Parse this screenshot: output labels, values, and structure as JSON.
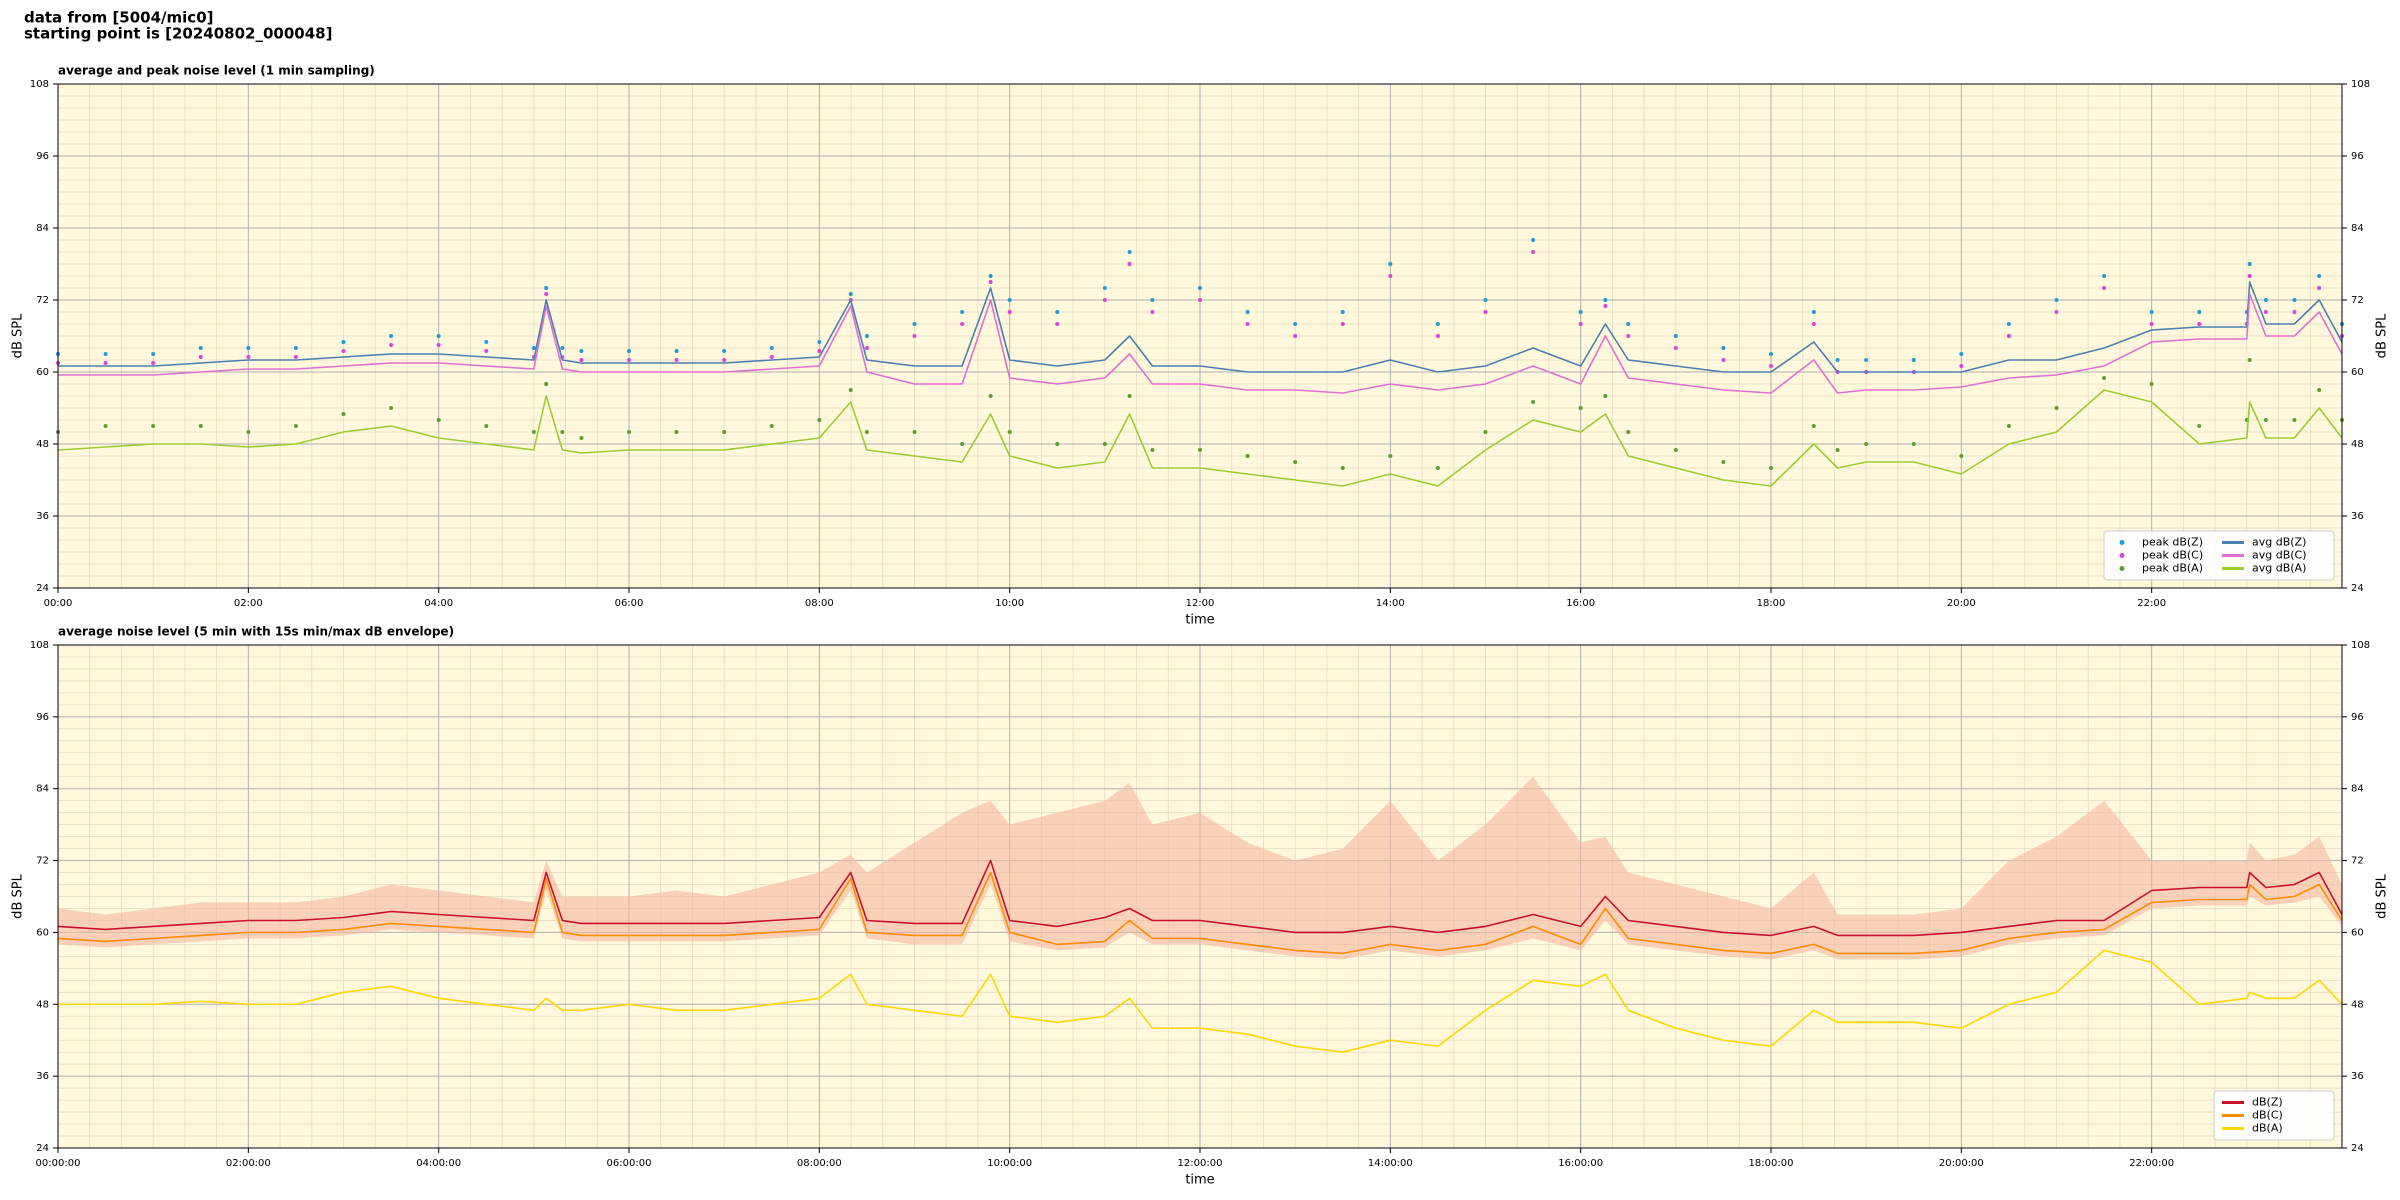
{
  "header": {
    "line1": "data from [5004/mic0]",
    "line2": "starting point is [20240802_000048]"
  },
  "chart_data": [
    {
      "type": "line",
      "title": "average and peak noise level (1 min sampling)",
      "xlabel": "time",
      "ylabel": "dB SPL",
      "xlim": [
        0,
        24
      ],
      "ylim": [
        24,
        108
      ],
      "grid": true,
      "legend": "lower right",
      "legend_columns": 2,
      "background": "#fff8dc",
      "xticks": [
        {
          "value": 0,
          "label": "00:00"
        },
        {
          "value": 2,
          "label": "02:00"
        },
        {
          "value": 4,
          "label": "04:00"
        },
        {
          "value": 6,
          "label": "06:00"
        },
        {
          "value": 8,
          "label": "08:00"
        },
        {
          "value": 10,
          "label": "10:00"
        },
        {
          "value": 12,
          "label": "12:00"
        },
        {
          "value": 14,
          "label": "14:00"
        },
        {
          "value": 16,
          "label": "16:00"
        },
        {
          "value": 18,
          "label": "18:00"
        },
        {
          "value": 20,
          "label": "20:00"
        },
        {
          "value": 22,
          "label": "22:00"
        }
      ],
      "yticks": [
        24,
        36,
        48,
        60,
        72,
        84,
        96,
        108
      ],
      "x": [
        0,
        0.5,
        1,
        1.5,
        2,
        2.5,
        3,
        3.5,
        4,
        4.5,
        5,
        5.13,
        5.3,
        5.5,
        6,
        6.5,
        7,
        7.5,
        8,
        8.33,
        8.5,
        9,
        9.5,
        9.8,
        10,
        10.5,
        11,
        11.26,
        11.5,
        12,
        12.5,
        13,
        13.5,
        14,
        14.5,
        15,
        15.5,
        16,
        16.26,
        16.5,
        17,
        17.5,
        18,
        18.45,
        18.7,
        19,
        19.5,
        20,
        20.5,
        21,
        21.5,
        22,
        22.5,
        23,
        23.03,
        23.2,
        23.5,
        23.76,
        24
      ],
      "series": [
        {
          "name": "peak dB(Z)",
          "style": "markers",
          "color": "#1f9bd7",
          "values": [
            63,
            63,
            63,
            64,
            64,
            64,
            65,
            66,
            66,
            65,
            64,
            74,
            64,
            63.5,
            63.5,
            63.5,
            63.5,
            64,
            65,
            73,
            66,
            68,
            70,
            76,
            72,
            70,
            74,
            80,
            72,
            74,
            70,
            68,
            70,
            78,
            68,
            72,
            82,
            70,
            72,
            68,
            66,
            64,
            63,
            70,
            62,
            62,
            62,
            63,
            68,
            72,
            76,
            70,
            70,
            70,
            78,
            72,
            72,
            76,
            68
          ]
        },
        {
          "name": "peak dB(C)",
          "style": "markers",
          "color": "#e040e0",
          "values": [
            61.5,
            61.5,
            61.5,
            62.5,
            62.5,
            62.5,
            63.5,
            64.5,
            64.5,
            63.5,
            62.5,
            73,
            62.5,
            62,
            62,
            62,
            62,
            62.5,
            63.5,
            72,
            64,
            66,
            68,
            75,
            70,
            68,
            72,
            78,
            70,
            72,
            68,
            66,
            68,
            76,
            66,
            70,
            80,
            68,
            71,
            66,
            64,
            62,
            61,
            68,
            60,
            60,
            60,
            61,
            66,
            70,
            74,
            68,
            68,
            68,
            76,
            70,
            70,
            74,
            66
          ]
        },
        {
          "name": "peak dB(A)",
          "style": "markers",
          "color": "#5a9e3a",
          "values": [
            50,
            51,
            51,
            51,
            50,
            51,
            53,
            54,
            52,
            51,
            50,
            58,
            50,
            49,
            50,
            50,
            50,
            51,
            52,
            57,
            50,
            50,
            48,
            56,
            50,
            48,
            48,
            56,
            47,
            47,
            46,
            45,
            44,
            46,
            44,
            50,
            55,
            54,
            56,
            50,
            47,
            45,
            44,
            51,
            47,
            48,
            48,
            46,
            51,
            54,
            59,
            58,
            51,
            52,
            62,
            52,
            52,
            57,
            52
          ]
        },
        {
          "name": "avg dB(Z)",
          "style": "line",
          "color": "#4a7fb0",
          "values": [
            61,
            61,
            61,
            61.5,
            62,
            62,
            62.5,
            63,
            63,
            62.5,
            62,
            72,
            62,
            61.5,
            61.5,
            61.5,
            61.5,
            62,
            62.5,
            72,
            62,
            61,
            61,
            74,
            62,
            61,
            62,
            66,
            61,
            61,
            60,
            60,
            60,
            62,
            60,
            61,
            64,
            61,
            68,
            62,
            61,
            60,
            60,
            65,
            60,
            60,
            60,
            60,
            62,
            62,
            64,
            67,
            67.5,
            67.5,
            75,
            68,
            68,
            72,
            65
          ]
        },
        {
          "name": "avg dB(C)",
          "style": "line",
          "color": "#e070d0",
          "values": [
            59.5,
            59.5,
            59.5,
            60,
            60.5,
            60.5,
            61,
            61.5,
            61.5,
            61,
            60.5,
            71,
            60.5,
            60,
            60,
            60,
            60,
            60.5,
            61,
            71,
            60,
            58,
            58,
            72,
            59,
            58,
            59,
            63,
            58,
            58,
            57,
            57,
            56.5,
            58,
            57,
            58,
            61,
            58,
            66,
            59,
            58,
            57,
            56.5,
            62,
            56.5,
            57,
            57,
            57.5,
            59,
            59.5,
            61,
            65,
            65.5,
            65.5,
            73,
            66,
            66,
            70,
            63
          ]
        },
        {
          "name": "avg dB(A)",
          "style": "line",
          "color": "#9acd32",
          "values": [
            47,
            47.5,
            48,
            48,
            47.5,
            48,
            50,
            51,
            49,
            48,
            47,
            56,
            47,
            46.5,
            47,
            47,
            47,
            48,
            49,
            55,
            47,
            46,
            45,
            53,
            46,
            44,
            45,
            53,
            44,
            44,
            43,
            42,
            41,
            43,
            41,
            47,
            52,
            50,
            53,
            46,
            44,
            42,
            41,
            48,
            44,
            45,
            45,
            43,
            48,
            50,
            57,
            55,
            48,
            49,
            55,
            49,
            49,
            54,
            49
          ]
        }
      ]
    },
    {
      "type": "line",
      "title": "average noise level (5 min with 15s min/max dB envelope)",
      "xlabel": "time",
      "ylabel": "dB SPL",
      "xlim": [
        0,
        24
      ],
      "ylim": [
        24,
        108
      ],
      "grid": true,
      "legend": "lower right",
      "legend_columns": 1,
      "background": "#fff8dc",
      "xticks": [
        {
          "value": 0,
          "label": "00:00:00"
        },
        {
          "value": 2,
          "label": "02:00:00"
        },
        {
          "value": 4,
          "label": "04:00:00"
        },
        {
          "value": 6,
          "label": "06:00:00"
        },
        {
          "value": 8,
          "label": "08:00:00"
        },
        {
          "value": 10,
          "label": "10:00:00"
        },
        {
          "value": 12,
          "label": "12:00:00"
        },
        {
          "value": 14,
          "label": "14:00:00"
        },
        {
          "value": 16,
          "label": "16:00:00"
        },
        {
          "value": 18,
          "label": "18:00:00"
        },
        {
          "value": 20,
          "label": "20:00:00"
        },
        {
          "value": 22,
          "label": "22:00:00"
        }
      ],
      "yticks": [
        24,
        36,
        48,
        60,
        72,
        84,
        96,
        108
      ],
      "x": [
        0,
        0.5,
        1,
        1.5,
        2,
        2.5,
        3,
        3.5,
        4,
        4.5,
        5,
        5.13,
        5.3,
        5.5,
        6,
        6.5,
        7,
        7.5,
        8,
        8.33,
        8.5,
        9,
        9.5,
        9.8,
        10,
        10.5,
        11,
        11.26,
        11.5,
        12,
        12.5,
        13,
        13.5,
        14,
        14.5,
        15,
        15.5,
        16,
        16.26,
        16.5,
        17,
        17.5,
        18,
        18.45,
        18.7,
        19,
        19.5,
        20,
        20.5,
        21,
        21.5,
        22,
        22.5,
        23,
        23.03,
        23.2,
        23.5,
        23.76,
        24
      ],
      "envelope": {
        "color": "#f4b8a0",
        "max": [
          64,
          63,
          64,
          65,
          65,
          65,
          66,
          68,
          67,
          66,
          65,
          72,
          66,
          66,
          66,
          67,
          66,
          68,
          70,
          73,
          70,
          75,
          80,
          82,
          78,
          80,
          82,
          85,
          78,
          80,
          75,
          72,
          74,
          82,
          72,
          78,
          86,
          75,
          76,
          70,
          68,
          66,
          64,
          70,
          63,
          63,
          63,
          64,
          72,
          76,
          82,
          72,
          72,
          72,
          75,
          72,
          73,
          76,
          68
        ],
        "min": [
          58,
          57.5,
          58,
          58.5,
          59,
          59,
          59.5,
          60.5,
          60,
          59.5,
          59,
          67,
          59,
          58.5,
          58.5,
          58.5,
          58.5,
          59,
          59.5,
          67,
          59,
          58,
          58,
          68,
          58.5,
          57,
          57.5,
          60,
          58,
          58,
          57,
          56,
          55.5,
          57,
          56,
          57,
          59,
          57,
          62,
          58,
          57,
          56,
          55.5,
          57,
          55.5,
          55.5,
          55.5,
          56,
          58,
          59,
          59.5,
          64,
          64.5,
          64.5,
          66,
          64.5,
          65,
          66,
          61
        ]
      },
      "series": [
        {
          "name": "dB(Z)",
          "style": "line",
          "color": "#c8102e",
          "values": [
            61,
            60.5,
            61,
            61.5,
            62,
            62,
            62.5,
            63.5,
            63,
            62.5,
            62,
            70,
            62,
            61.5,
            61.5,
            61.5,
            61.5,
            62,
            62.5,
            70,
            62,
            61.5,
            61.5,
            72,
            62,
            61,
            62.5,
            64,
            62,
            62,
            61,
            60,
            60,
            61,
            60,
            61,
            63,
            61,
            66,
            62,
            61,
            60,
            59.5,
            61,
            59.5,
            59.5,
            59.5,
            60,
            61,
            62,
            62,
            67,
            67.5,
            67.5,
            70,
            67.5,
            68,
            70,
            63
          ]
        },
        {
          "name": "dB(C)",
          "style": "line",
          "color": "#ff8c00",
          "values": [
            59,
            58.5,
            59,
            59.5,
            60,
            60,
            60.5,
            61.5,
            61,
            60.5,
            60,
            69,
            60,
            59.5,
            59.5,
            59.5,
            59.5,
            60,
            60.5,
            69,
            60,
            59.5,
            59.5,
            70,
            60,
            58,
            58.5,
            62,
            59,
            59,
            58,
            57,
            56.5,
            58,
            57,
            58,
            61,
            58,
            64,
            59,
            58,
            57,
            56.5,
            58,
            56.5,
            56.5,
            56.5,
            57,
            59,
            60,
            60.5,
            65,
            65.5,
            65.5,
            68,
            65.5,
            66,
            68,
            62
          ]
        },
        {
          "name": "dB(A)",
          "style": "line",
          "color": "#ffd700",
          "values": [
            48,
            48,
            48,
            48.5,
            48,
            48,
            50,
            51,
            49,
            48,
            47,
            49,
            47,
            47,
            48,
            47,
            47,
            48,
            49,
            53,
            48,
            47,
            46,
            53,
            46,
            45,
            46,
            49,
            44,
            44,
            43,
            41,
            40,
            42,
            41,
            47,
            52,
            51,
            53,
            47,
            44,
            42,
            41,
            47,
            45,
            45,
            45,
            44,
            48,
            50,
            57,
            55,
            48,
            49,
            50,
            49,
            49,
            52,
            48
          ]
        }
      ]
    }
  ]
}
